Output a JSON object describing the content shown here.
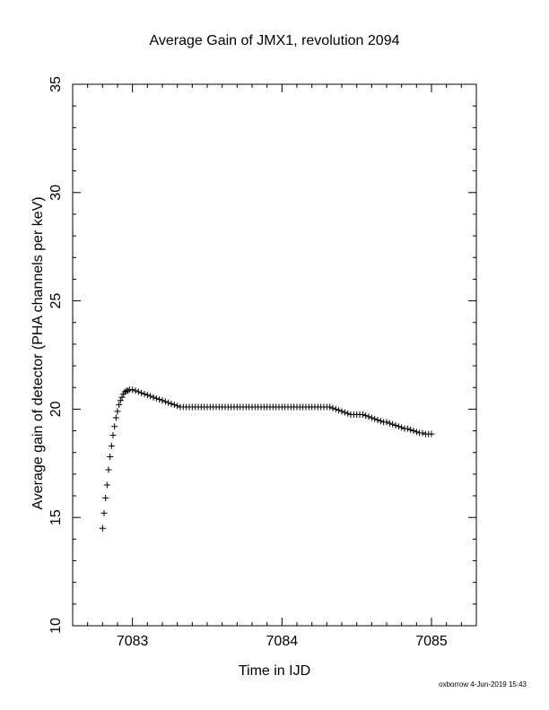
{
  "chart_data": {
    "type": "scatter",
    "title": "Average Gain of JMX1, revolution 2094",
    "xlabel": "Time in IJD",
    "ylabel": "Average gain of detector (PHA channels per keV)",
    "xlim": [
      7082.6,
      7085.3
    ],
    "ylim": [
      10,
      35
    ],
    "xticks": [
      7083,
      7084,
      7085
    ],
    "yticks": [
      10,
      15,
      20,
      25,
      30,
      35
    ],
    "marker": "plus",
    "grid": false,
    "series": [
      {
        "x": [
          7082.8,
          7082.81,
          7082.82,
          7082.83,
          7082.84,
          7082.85,
          7082.86,
          7082.87,
          7082.88,
          7082.89,
          7082.9,
          7082.91,
          7082.92,
          7082.93,
          7082.94,
          7082.95,
          7082.96,
          7082.97,
          7082.98,
          7083.0,
          7083.02,
          7083.04,
          7083.06,
          7083.08,
          7083.1,
          7083.12,
          7083.14,
          7083.16,
          7083.18,
          7083.2,
          7083.22,
          7083.24,
          7083.26,
          7083.28,
          7083.3,
          7083.32,
          7083.34,
          7083.36,
          7083.38,
          7083.4,
          7083.42,
          7083.44,
          7083.46,
          7083.48,
          7083.5,
          7083.52,
          7083.54,
          7083.56,
          7083.58,
          7083.6,
          7083.62,
          7083.64,
          7083.66,
          7083.68,
          7083.7,
          7083.72,
          7083.74,
          7083.76,
          7083.78,
          7083.8,
          7083.82,
          7083.84,
          7083.86,
          7083.88,
          7083.9,
          7083.92,
          7083.94,
          7083.96,
          7083.98,
          7084.0,
          7084.02,
          7084.04,
          7084.06,
          7084.08,
          7084.1,
          7084.12,
          7084.14,
          7084.16,
          7084.18,
          7084.2,
          7084.22,
          7084.24,
          7084.26,
          7084.28,
          7084.3,
          7084.32,
          7084.34,
          7084.36,
          7084.38,
          7084.4,
          7084.42,
          7084.44,
          7084.46,
          7084.48,
          7084.5,
          7084.52,
          7084.54,
          7084.56,
          7084.58,
          7084.6,
          7084.62,
          7084.64,
          7084.66,
          7084.68,
          7084.7,
          7084.72,
          7084.74,
          7084.76,
          7084.78,
          7084.8,
          7084.82,
          7084.84,
          7084.86,
          7084.88,
          7084.9,
          7084.92,
          7084.94,
          7084.96,
          7084.98,
          7085.0
        ],
        "y": [
          14.5,
          15.2,
          15.9,
          16.5,
          17.2,
          17.8,
          18.3,
          18.8,
          19.2,
          19.6,
          19.9,
          20.2,
          20.4,
          20.55,
          20.7,
          20.8,
          20.85,
          20.85,
          20.9,
          20.9,
          20.85,
          20.8,
          20.75,
          20.7,
          20.65,
          20.6,
          20.55,
          20.5,
          20.45,
          20.4,
          20.35,
          20.3,
          20.25,
          20.2,
          20.15,
          20.1,
          20.1,
          20.1,
          20.1,
          20.1,
          20.1,
          20.1,
          20.1,
          20.1,
          20.1,
          20.1,
          20.1,
          20.1,
          20.1,
          20.1,
          20.1,
          20.1,
          20.1,
          20.1,
          20.1,
          20.1,
          20.1,
          20.1,
          20.1,
          20.1,
          20.1,
          20.1,
          20.1,
          20.1,
          20.1,
          20.1,
          20.1,
          20.1,
          20.1,
          20.1,
          20.1,
          20.1,
          20.1,
          20.1,
          20.1,
          20.1,
          20.1,
          20.1,
          20.1,
          20.1,
          20.1,
          20.1,
          20.1,
          20.1,
          20.1,
          20.1,
          20.05,
          20.0,
          19.95,
          19.9,
          19.85,
          19.8,
          19.75,
          19.75,
          19.75,
          19.75,
          19.75,
          19.7,
          19.65,
          19.6,
          19.55,
          19.5,
          19.45,
          19.4,
          19.4,
          19.35,
          19.3,
          19.25,
          19.2,
          19.15,
          19.1,
          19.1,
          19.05,
          19.0,
          18.95,
          18.9,
          18.9,
          18.85,
          18.85,
          18.85
        ]
      }
    ]
  },
  "footer": {
    "credit": "oxborrow  4-Jun-2019 15:43"
  }
}
